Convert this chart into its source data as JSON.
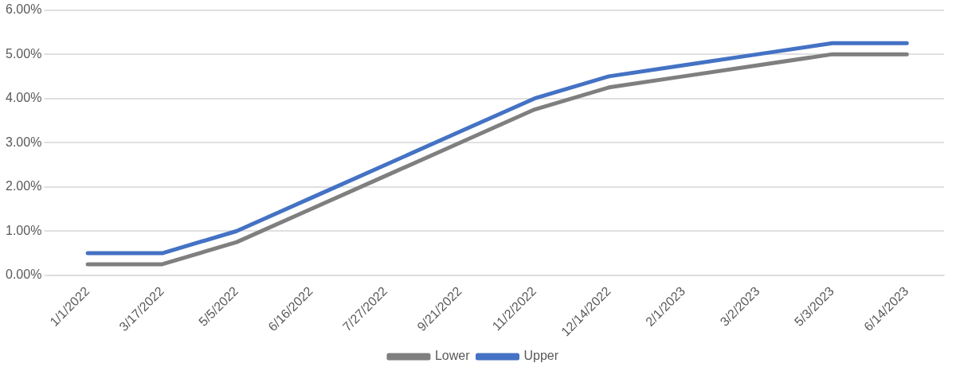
{
  "chart_data": {
    "type": "line",
    "categories": [
      "1/1/2022",
      "3/17/2022",
      "5/5/2022",
      "6/16/2022",
      "7/27/2022",
      "9/21/2022",
      "11/2/2022",
      "12/14/2022",
      "2/1/2023",
      "3/2/2023",
      "5/3/2023",
      "6/14/2023"
    ],
    "series": [
      {
        "name": "Lower",
        "color": "#7f7f7f",
        "values": [
          0.25,
          0.25,
          0.75,
          1.5,
          2.25,
          3.0,
          3.75,
          4.25,
          4.5,
          4.75,
          5.0,
          5.0
        ]
      },
      {
        "name": "Upper",
        "color": "#4472c4",
        "values": [
          0.5,
          0.5,
          1.0,
          1.75,
          2.5,
          3.25,
          4.0,
          4.5,
          4.75,
          5.0,
          5.25,
          5.25
        ]
      }
    ],
    "ylim": [
      0,
      6
    ],
    "yticks": [
      {
        "value": 0,
        "label": "0.00%"
      },
      {
        "value": 1,
        "label": "1.00%"
      },
      {
        "value": 2,
        "label": "2.00%"
      },
      {
        "value": 3,
        "label": "3.00%"
      },
      {
        "value": 4,
        "label": "4.00%"
      },
      {
        "value": 5,
        "label": "5.00%"
      },
      {
        "value": 6,
        "label": "6.00%"
      }
    ],
    "grid": "y",
    "legend": "bottom",
    "marker": "none",
    "line_style": "solid"
  }
}
